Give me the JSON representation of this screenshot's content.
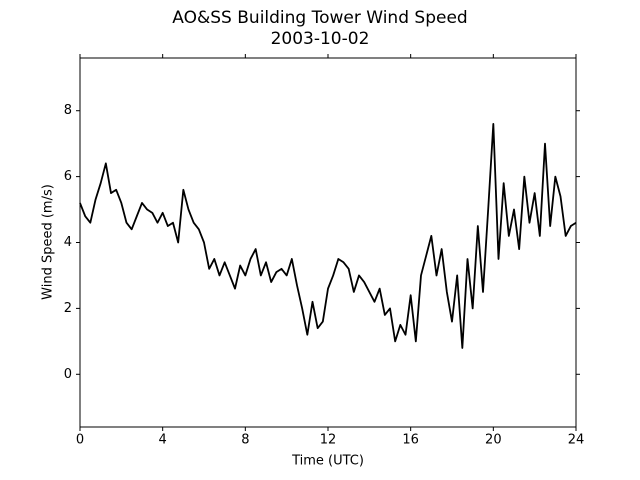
{
  "chart_data": {
    "type": "line",
    "title": "AO&SS Building Tower Wind Speed",
    "subtitle": "2003-10-02",
    "x_label": "Time (UTC)",
    "y_label": "Wind Speed (m/s)",
    "x": [
      0,
      0.25,
      0.5,
      0.75,
      1,
      1.25,
      1.5,
      1.75,
      2,
      2.25,
      2.5,
      2.75,
      3,
      3.25,
      3.5,
      3.75,
      4,
      4.25,
      4.5,
      4.75,
      5,
      5.25,
      5.5,
      5.75,
      6,
      6.25,
      6.5,
      6.75,
      7,
      7.25,
      7.5,
      7.75,
      8,
      8.25,
      8.5,
      8.75,
      9,
      9.25,
      9.5,
      9.75,
      10,
      10.25,
      10.5,
      10.75,
      11,
      11.25,
      11.5,
      11.75,
      12,
      12.25,
      12.5,
      12.75,
      13,
      13.25,
      13.5,
      13.75,
      14,
      14.25,
      14.5,
      14.75,
      15,
      15.25,
      15.5,
      15.75,
      16,
      16.25,
      16.5,
      16.75,
      17,
      17.25,
      17.5,
      17.75,
      18,
      18.25,
      18.5,
      18.75,
      19,
      19.25,
      19.5,
      19.75,
      20,
      20.25,
      20.5,
      20.75,
      21,
      21.25,
      21.5,
      21.75,
      22,
      22.25,
      22.5,
      22.75,
      23,
      23.25,
      23.5,
      23.75,
      24
    ],
    "series": [
      {
        "name": "Wind Speed",
        "color": "#000000",
        "values": [
          5.2,
          4.8,
          4.6,
          5.3,
          5.8,
          6.4,
          5.5,
          5.6,
          5.2,
          4.6,
          4.4,
          4.8,
          5.2,
          5.0,
          4.9,
          4.6,
          4.9,
          4.5,
          4.6,
          4.0,
          5.6,
          5.0,
          4.6,
          4.4,
          4.0,
          3.2,
          3.5,
          3.0,
          3.4,
          3.0,
          2.6,
          3.3,
          3.0,
          3.5,
          3.8,
          3.0,
          3.4,
          2.8,
          3.1,
          3.2,
          3.0,
          3.5,
          2.7,
          2.0,
          1.2,
          2.2,
          1.4,
          1.6,
          2.6,
          3.0,
          3.5,
          3.4,
          3.2,
          2.5,
          3.0,
          2.8,
          2.5,
          2.2,
          2.6,
          1.8,
          2.0,
          1.0,
          1.5,
          1.2,
          2.4,
          1.0,
          3.0,
          3.6,
          4.2,
          3.0,
          3.8,
          2.5,
          1.6,
          3.0,
          0.8,
          3.5,
          2.0,
          4.5,
          2.5,
          5.0,
          7.6,
          3.5,
          5.8,
          4.2,
          5.0,
          3.8,
          6.0,
          4.6,
          5.5,
          4.2,
          7.0,
          4.5,
          6.0,
          5.4,
          4.2,
          4.5,
          4.6
        ]
      }
    ],
    "xlim": [
      0,
      24
    ],
    "xticks": [
      0,
      4,
      8,
      12,
      16,
      20,
      24
    ],
    "ylim": [
      -1.6,
      9.6
    ],
    "yticks": [
      0,
      2,
      4,
      6,
      8
    ],
    "grid": false
  }
}
